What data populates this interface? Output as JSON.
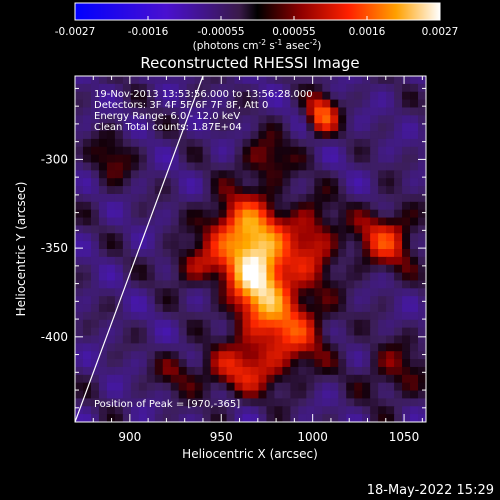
{
  "chart_data": {
    "type": "heatmap",
    "title": "Reconstructed RHESSI Image",
    "xlabel": "Heliocentric X (arcsec)",
    "ylabel": "Heliocentric Y (arcsec)",
    "xlim": [
      870,
      1062
    ],
    "ylim": [
      -448,
      -253
    ],
    "xticks": [
      900,
      950,
      1000,
      1050
    ],
    "yticks": [
      -300,
      -350,
      -400
    ],
    "colorbar": {
      "ticks": [
        "-0.0027",
        "-0.0016",
        "-0.00055",
        "0.00055",
        "0.0016",
        "0.0027"
      ],
      "unit_text": "(photons cm",
      "unit_sup1": "-2",
      "unit_mid": " s",
      "unit_sup2": "-1",
      "unit_mid2": " asec",
      "unit_sup3": "-2",
      "unit_end": ")"
    },
    "annotations": [
      "19-Nov-2013 13:53:56.000 to 13:56:28.000",
      "Detectors: 3F 4F 5F 6F 7F 8F, Att 0",
      "Energy Range: 6.0 - 12.0 keV",
      "Clean    Total counts: 1.87E+04"
    ],
    "peak_label": "Position of Peak = [970,-365]",
    "peak": [
      970,
      -365
    ],
    "limb_line": [
      [
        870,
        -448
      ],
      [
        940,
        -253
      ]
    ],
    "sources": [
      {
        "x": 970,
        "y": -365,
        "amp": 1.0,
        "sx": 11,
        "sy": 16
      },
      {
        "x": 962,
        "y": -340,
        "amp": 0.75,
        "sx": 14,
        "sy": 14
      },
      {
        "x": 985,
        "y": -395,
        "amp": 0.6,
        "sx": 16,
        "sy": 18
      },
      {
        "x": 958,
        "y": -420,
        "amp": 0.45,
        "sx": 14,
        "sy": 10
      },
      {
        "x": 1000,
        "y": -345,
        "amp": 0.45,
        "sx": 10,
        "sy": 16
      },
      {
        "x": 1040,
        "y": -345,
        "amp": 0.55,
        "sx": 12,
        "sy": 12
      },
      {
        "x": 1005,
        "y": -275,
        "amp": 0.7,
        "sx": 6,
        "sy": 8
      },
      {
        "x": 975,
        "y": -300,
        "amp": 0.35,
        "sx": 10,
        "sy": 10
      },
      {
        "x": 935,
        "y": -360,
        "amp": 0.35,
        "sx": 10,
        "sy": 8
      },
      {
        "x": 890,
        "y": -300,
        "amp": 0.3,
        "sx": 8,
        "sy": 10
      },
      {
        "x": 1045,
        "y": -420,
        "amp": 0.3,
        "sx": 12,
        "sy": 12
      },
      {
        "x": 925,
        "y": -420,
        "amp": 0.25,
        "sx": 8,
        "sy": 8
      }
    ]
  },
  "footer": {
    "timestamp": "18-May-2022 15:29"
  },
  "colors": {
    "background": "#000000",
    "foreground": "#ffffff"
  }
}
